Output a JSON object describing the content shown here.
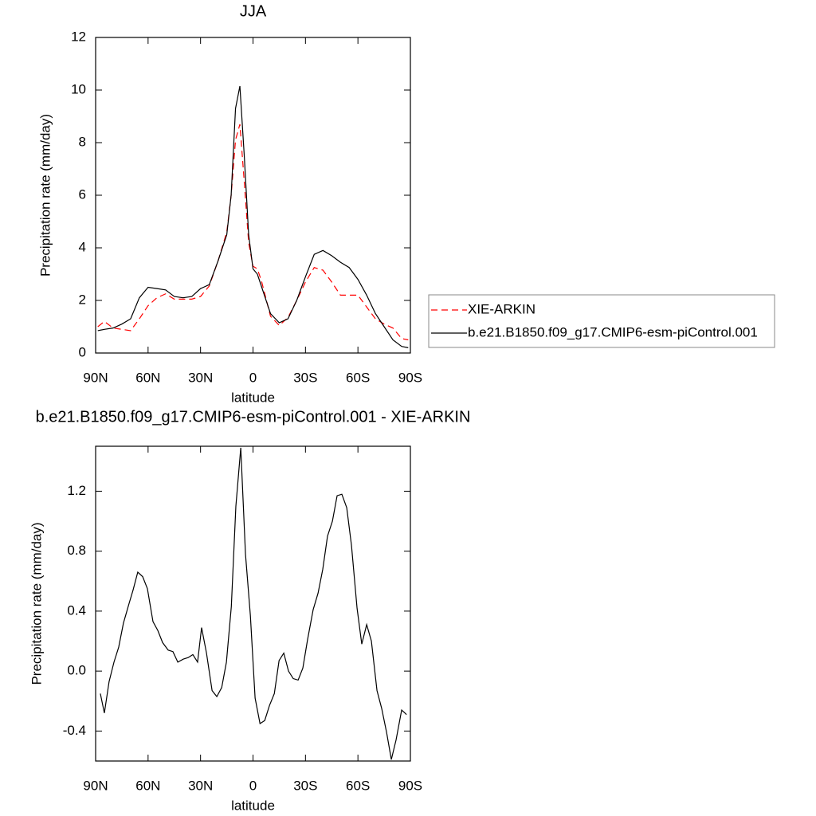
{
  "chart_data": [
    {
      "type": "line",
      "title": "JJA",
      "xlabel": "latitude",
      "ylabel": "Precipitation rate (mm/day)",
      "x": [
        88.75,
        85,
        80,
        75,
        70,
        65,
        60,
        55,
        50,
        45,
        40,
        35,
        30,
        25,
        20,
        15,
        12.5,
        10,
        7.5,
        5,
        2.5,
        0,
        -2.5,
        -5,
        -10,
        -15,
        -20,
        -25,
        -30,
        -35,
        -40,
        -45,
        -50,
        -55,
        -60,
        -65,
        -70,
        -75,
        -80,
        -85,
        -88.75
      ],
      "series": [
        {
          "name": "XIE-ARKIN",
          "color": "#ff0000",
          "dash": true,
          "values": [
            1.0,
            1.2,
            0.95,
            0.9,
            0.85,
            1.3,
            1.8,
            2.1,
            2.25,
            2.05,
            2.05,
            2.05,
            2.15,
            2.55,
            3.5,
            4.6,
            6.0,
            8.1,
            8.7,
            6.5,
            4.2,
            3.3,
            3.2,
            2.7,
            1.4,
            1.05,
            1.35,
            2.0,
            2.7,
            3.25,
            3.15,
            2.7,
            2.2,
            2.2,
            2.2,
            1.75,
            1.3,
            1.1,
            0.95,
            0.55,
            0.5
          ]
        },
        {
          "name": "b.e21.B1850.f09_g17.CMIP6-esm-piControl.001",
          "color": "#000000",
          "dash": false,
          "values": [
            0.85,
            0.9,
            0.95,
            1.1,
            1.3,
            2.1,
            2.5,
            2.45,
            2.4,
            2.15,
            2.1,
            2.15,
            2.45,
            2.6,
            3.5,
            4.5,
            6.0,
            9.3,
            10.15,
            7.5,
            4.5,
            3.2,
            3.0,
            2.5,
            1.5,
            1.15,
            1.3,
            2.0,
            2.9,
            3.75,
            3.9,
            3.7,
            3.45,
            3.25,
            2.8,
            2.2,
            1.5,
            1.0,
            0.5,
            0.25,
            0.2
          ]
        }
      ],
      "xlim": [
        90,
        -90
      ],
      "xticks": [
        {
          "value": 90,
          "label": "90N"
        },
        {
          "value": 60,
          "label": "60N"
        },
        {
          "value": 30,
          "label": "30N"
        },
        0,
        {
          "value": -30,
          "label": "30S"
        },
        {
          "value": -60,
          "label": "60S"
        },
        {
          "value": -90,
          "label": "90S"
        }
      ],
      "ylim": [
        0,
        12
      ],
      "yticks": [
        0,
        2,
        4,
        6,
        8,
        10,
        12
      ],
      "legend": "right"
    },
    {
      "type": "line",
      "title": "b.e21.B1850.f09_g17.CMIP6-esm-piControl.001 - XIE-ARKIN",
      "xlabel": "latitude",
      "ylabel": "Precipitation rate (mm/day)",
      "x": [
        87.3,
        85.0,
        82.3,
        79.5,
        76.8,
        74.1,
        70.9,
        68.6,
        65.9,
        63.1,
        60.4,
        57.2,
        54.4,
        51.7,
        48.5,
        45.8,
        43.0,
        39.8,
        37.1,
        34.4,
        31.7,
        29.4,
        26.6,
        23.4,
        20.7,
        17.9,
        15.2,
        12.4,
        9.8,
        7.0,
        4.3,
        1.5,
        -1.2,
        -4.0,
        -6.7,
        -9.4,
        -12.2,
        -14.9,
        -17.6,
        -20.3,
        -23.0,
        -25.8,
        -28.5,
        -31.2,
        -34.4,
        -37.2,
        -39.9,
        -42.6,
        -45.4,
        -48.1,
        -50.8,
        -53.6,
        -56.3,
        -59.5,
        -62.2,
        -65.0,
        -67.7,
        -70.9,
        -73.6,
        -76.4,
        -79.1,
        -81.8,
        -85.0,
        -87.8
      ],
      "values": [
        -0.15,
        -0.28,
        -0.07,
        0.06,
        0.16,
        0.32,
        0.45,
        0.54,
        0.66,
        0.63,
        0.55,
        0.33,
        0.27,
        0.19,
        0.14,
        0.13,
        0.06,
        0.08,
        0.09,
        0.11,
        0.06,
        0.29,
        0.12,
        -0.13,
        -0.17,
        -0.11,
        0.06,
        0.43,
        1.1,
        1.49,
        0.78,
        0.37,
        -0.18,
        -0.35,
        -0.33,
        -0.23,
        -0.15,
        0.07,
        0.12,
        0.0,
        -0.05,
        -0.06,
        0.02,
        0.21,
        0.41,
        0.52,
        0.68,
        0.9,
        1.0,
        1.17,
        1.18,
        1.09,
        0.84,
        0.42,
        0.18,
        0.31,
        0.2,
        -0.13,
        -0.25,
        -0.41,
        -0.59,
        -0.46,
        -0.26,
        -0.29
      ],
      "color": "#000000",
      "xlim": [
        90,
        -90
      ],
      "xticks": [
        {
          "value": 90,
          "label": "90N"
        },
        {
          "value": 60,
          "label": "60N"
        },
        {
          "value": 30,
          "label": "30N"
        },
        0,
        {
          "value": -30,
          "label": "30S"
        },
        {
          "value": -60,
          "label": "60S"
        },
        {
          "value": -90,
          "label": "90S"
        }
      ],
      "ylim": [
        -0.6,
        1.5
      ],
      "yticks": [
        -0.4,
        {
          "value": 0,
          "label": "0.0"
        },
        0.4,
        0.8,
        1.2
      ]
    }
  ]
}
